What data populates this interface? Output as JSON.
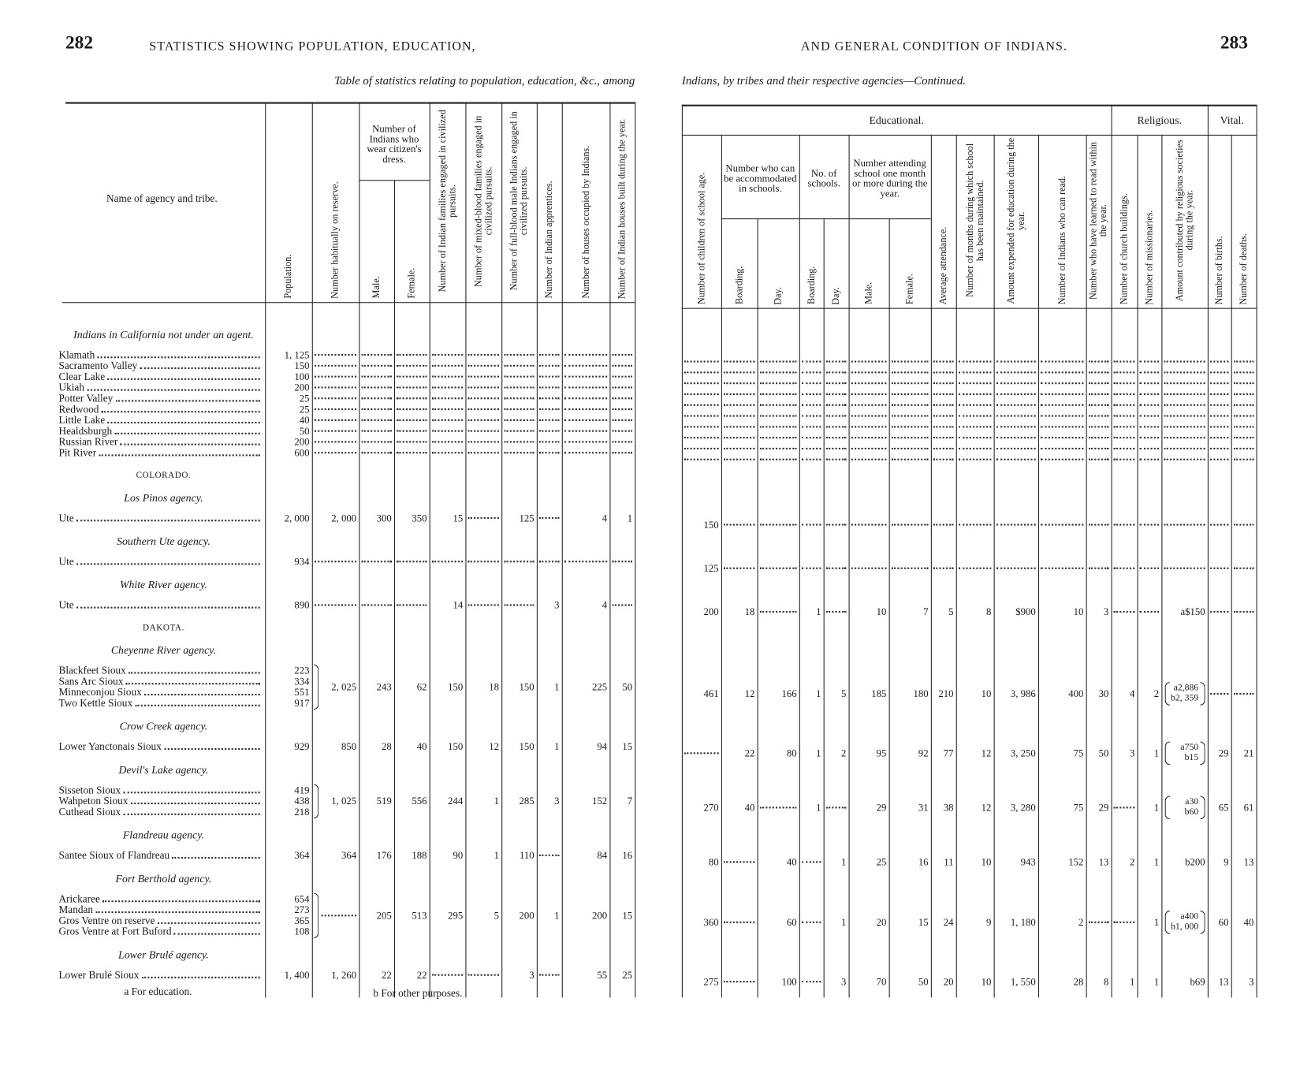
{
  "left_page": {
    "page_number": "282",
    "running_head": "STATISTICS SHOWING POPULATION, EDUCATION,",
    "table_caption": "Table of statistics relating to population, education, &c., among"
  },
  "right_page": {
    "page_number": "283",
    "running_head": "AND GENERAL CONDITION OF INDIANS.",
    "table_caption": "Indians, by tribes and their respective agencies—Continued."
  },
  "left_header": {
    "name": "Name of agency and tribe.",
    "groups": [
      "Number of Indians who wear citizen's dress."
    ],
    "columns": [
      "Population.",
      "Number habitually on reserve.",
      "Male.",
      "Female.",
      "Number of Indian families engaged in civilized pursuits.",
      "Number of mixed-blood families engaged in civilized pursuits.",
      "Number of full-blood male Indians engaged in civilized pursuits.",
      "Number of Indian apprentices.",
      "Number of houses occupied by Indians.",
      "Number of Indian houses built during the year."
    ]
  },
  "right_header": {
    "sections": [
      "Educational.",
      "Religious.",
      "Vital."
    ],
    "groups": [
      "Number who can be accommodated in schools.",
      "No. of schools.",
      "Number attending school one month or more during the year."
    ],
    "columns": [
      "Number of children of school age.",
      "Boarding.",
      "Day.",
      "Boarding.",
      "Day.",
      "Male.",
      "Female.",
      "Average attendance.",
      "Number of months during which school has been maintained.",
      "Amount expended for education during the year.",
      "Number of Indians who can read.",
      "Number who have learned to read within the year.",
      "Number of church buildings.",
      "Number of missionaries.",
      "Amount contributed by religious societies during the year.",
      "Number of births.",
      "Number of deaths."
    ]
  },
  "body": [
    {
      "agency": "Indians in California not under an agent."
    },
    {
      "tribes": [
        {
          "name": "Klamath",
          "population": "1, 125"
        },
        {
          "name": "Sacramento Valley",
          "population": "150"
        },
        {
          "name": "Clear Lake",
          "population": "100"
        },
        {
          "name": "Ukiah",
          "population": "200"
        },
        {
          "name": "Potter Valley",
          "population": "25"
        },
        {
          "name": "Redwood",
          "population": "25"
        },
        {
          "name": "Little Lake",
          "population": "40"
        },
        {
          "name": "Healdsburgh",
          "population": "50"
        },
        {
          "name": "Russian River",
          "population": "200"
        },
        {
          "name": "Pit River",
          "population": "600"
        }
      ],
      "left": [
        null,
        null,
        null,
        null,
        null,
        null,
        null,
        null,
        null
      ],
      "right": [
        null,
        null,
        null,
        null,
        null,
        null,
        null,
        null,
        null,
        null,
        null,
        null,
        null,
        null,
        null,
        null,
        null
      ]
    },
    {
      "state": "COLORADO."
    },
    {
      "agency": "Los Pinos agency."
    },
    {
      "tribes": [
        {
          "name": "Ute",
          "population": "2, 000"
        }
      ],
      "left": [
        "2, 000",
        "300",
        "350",
        "15",
        null,
        "125",
        null,
        "4",
        "1"
      ],
      "right": [
        "150",
        null,
        null,
        null,
        null,
        null,
        null,
        null,
        null,
        null,
        null,
        null,
        null,
        null,
        null,
        null,
        null
      ]
    },
    {
      "agency": "Southern Ute agency."
    },
    {
      "tribes": [
        {
          "name": "Ute",
          "population": "934"
        }
      ],
      "left": [
        null,
        null,
        null,
        null,
        null,
        null,
        null,
        null,
        null
      ],
      "right": [
        "125",
        null,
        null,
        null,
        null,
        null,
        null,
        null,
        null,
        null,
        null,
        null,
        null,
        null,
        null,
        null,
        null
      ]
    },
    {
      "agency": "White River agency."
    },
    {
      "tribes": [
        {
          "name": "Ute",
          "population": "890"
        }
      ],
      "left": [
        null,
        null,
        null,
        "14",
        null,
        null,
        "3",
        "4",
        null
      ],
      "right": [
        "200",
        "18",
        null,
        "1",
        null,
        "10",
        "7",
        "5",
        "8",
        "$900",
        "10",
        "3",
        null,
        null,
        "a$150",
        null,
        null
      ]
    },
    {
      "state": "DAKOTA."
    },
    {
      "agency": "Cheyenne River agency."
    },
    {
      "tribes": [
        {
          "name": "Blackfeet Sioux",
          "population": "223"
        },
        {
          "name": "Sans Arc Sioux",
          "population": "334"
        },
        {
          "name": "Minneconjou Sioux",
          "population": "551"
        },
        {
          "name": "Two Kettle Sioux",
          "population": "917"
        }
      ],
      "left": [
        "2, 025",
        "243",
        "62",
        "150",
        "18",
        "150",
        "1",
        "225",
        "50"
      ],
      "right": [
        "461",
        "12",
        "166",
        "1",
        "5",
        "185",
        "180",
        "210",
        "10",
        "3, 986",
        "400",
        "30",
        "4",
        "2",
        [
          "a2,886",
          "b2, 359"
        ],
        null,
        null
      ]
    },
    {
      "agency": "Crow Creek agency."
    },
    {
      "tribes": [
        {
          "name": "Lower Yanctonais Sioux",
          "population": "929"
        }
      ],
      "left": [
        "850",
        "28",
        "40",
        "150",
        "12",
        "150",
        "1",
        "94",
        "15"
      ],
      "right": [
        null,
        "22",
        "80",
        "1",
        "2",
        "95",
        "92",
        "77",
        "12",
        "3, 250",
        "75",
        "50",
        "3",
        "1",
        [
          "a750",
          "b15"
        ],
        "29",
        "21"
      ]
    },
    {
      "agency": "Devil's Lake agency."
    },
    {
      "tribes": [
        {
          "name": "Sisseton Sioux",
          "population": "419"
        },
        {
          "name": "Wahpeton Sioux",
          "population": "438"
        },
        {
          "name": "Cuthead Sioux",
          "population": "218"
        }
      ],
      "left": [
        "1, 025",
        "519",
        "556",
        "244",
        "1",
        "285",
        "3",
        "152",
        "7"
      ],
      "right": [
        "270",
        "40",
        null,
        "1",
        null,
        "29",
        "31",
        "38",
        "12",
        "3, 280",
        "75",
        "29",
        null,
        "1",
        [
          "a30",
          "b60"
        ],
        "65",
        "61"
      ]
    },
    {
      "agency": "Flandreau agency."
    },
    {
      "tribes": [
        {
          "name": "Santee Sioux of Flandreau",
          "population": "364"
        }
      ],
      "left": [
        "364",
        "176",
        "188",
        "90",
        "1",
        "110",
        null,
        "84",
        "16"
      ],
      "right": [
        "80",
        null,
        "40",
        null,
        "1",
        "25",
        "16",
        "11",
        "10",
        "943",
        "152",
        "13",
        "2",
        "1",
        "b200",
        "9",
        "13"
      ]
    },
    {
      "agency": "Fort Berthold agency."
    },
    {
      "tribes": [
        {
          "name": "Arickaree",
          "population": "654"
        },
        {
          "name": "Mandan",
          "population": "273"
        },
        {
          "name": "Gros Ventre on reserve",
          "population": "365"
        },
        {
          "name": "Gros Ventre at Fort Buford",
          "population": "108"
        }
      ],
      "left": [
        null,
        "205",
        "513",
        "295",
        "5",
        "200",
        "1",
        "200",
        "15"
      ],
      "right": [
        "360",
        null,
        "60",
        null,
        "1",
        "20",
        "15",
        "24",
        "9",
        "1, 180",
        "2",
        null,
        null,
        "1",
        [
          "a400",
          "b1, 000"
        ],
        "60",
        "40"
      ]
    },
    {
      "agency": "Lower Brulé agency."
    },
    {
      "tribes": [
        {
          "name": "Lower Brulé Sioux",
          "population": "1, 400"
        }
      ],
      "left": [
        "1, 260",
        "22",
        "22",
        null,
        null,
        "3",
        null,
        "55",
        "25"
      ],
      "right": [
        "275",
        null,
        "100",
        null,
        "3",
        "70",
        "50",
        "20",
        "10",
        "1, 550",
        "28",
        "8",
        "1",
        "1",
        "b69",
        "13",
        "3"
      ]
    }
  ],
  "footnotes": [
    "a For education.",
    "b For other purposes."
  ]
}
